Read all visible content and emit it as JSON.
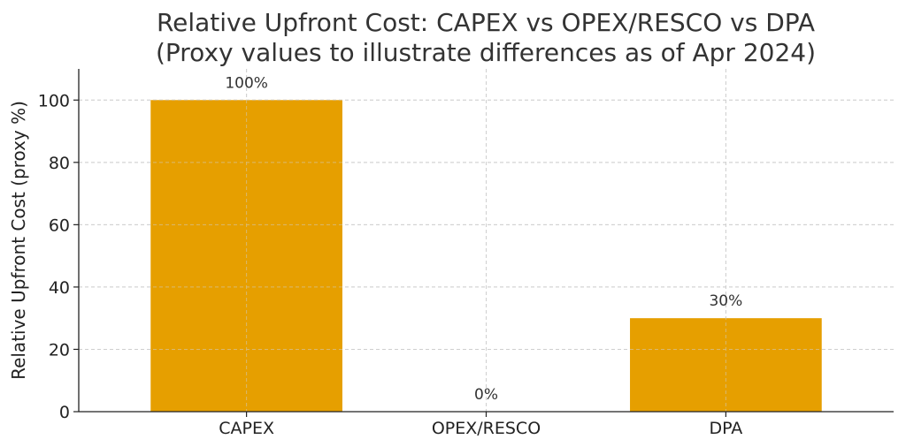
{
  "chart_data": {
    "type": "bar",
    "title": "Relative Upfront Cost: CAPEX vs OPEX/RESCO vs DPA",
    "subtitle": "(Proxy values to illustrate differences as of Apr 2024)",
    "xlabel": "",
    "ylabel": "Relative Upfront Cost (proxy %)",
    "categories": [
      "CAPEX",
      "OPEX/RESCO",
      "DPA"
    ],
    "values": [
      100,
      0,
      30
    ],
    "data_labels": [
      "100%",
      "0%",
      "30%"
    ],
    "ylim": [
      0,
      110
    ],
    "yticks": [
      0,
      20,
      40,
      60,
      80,
      100
    ],
    "ytick_labels": [
      "0",
      "20",
      "40",
      "60",
      "80",
      "100"
    ],
    "grid": true,
    "legend": "none",
    "bar_color": "#E69F00"
  }
}
